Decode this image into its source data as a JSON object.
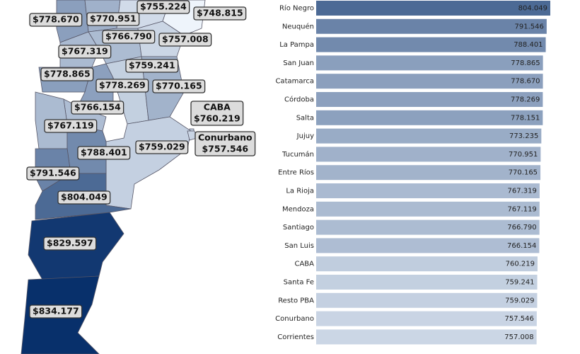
{
  "chart_data": [
    {
      "type": "map",
      "colors": [
        "#eef4fb",
        "#08306b"
      ],
      "regions": [
        {
          "label": "$778.670",
          "value": 778670
        },
        {
          "label": "$770.951",
          "value": 770951
        },
        {
          "label": "$755.224",
          "value": 755224
        },
        {
          "label": "$748.815",
          "value": 748815
        },
        {
          "label": "$766.790",
          "value": 766790
        },
        {
          "label": "$757.008",
          "value": 757008
        },
        {
          "label": "$767.319",
          "value": 767319
        },
        {
          "label": "$759.241",
          "value": 759241
        },
        {
          "label": "$778.865",
          "value": 778865
        },
        {
          "label": "$778.269",
          "value": 778269
        },
        {
          "label": "$770.165",
          "value": 770165
        },
        {
          "label": "$766.154",
          "value": 766154
        },
        {
          "name": "CABA",
          "label": "$760.219",
          "value": 760219
        },
        {
          "label": "$767.119",
          "value": 767119
        },
        {
          "label": "$759.029",
          "value": 759029
        },
        {
          "name": "Conurbano",
          "label": "$757.546",
          "value": 757546
        },
        {
          "label": "$788.401",
          "value": 788401
        },
        {
          "label": "$791.546",
          "value": 791546
        },
        {
          "label": "$804.049",
          "value": 804049
        },
        {
          "label": "$829.597",
          "value": 829597
        },
        {
          "label": "$834.177",
          "value": 834177
        }
      ]
    },
    {
      "type": "bar",
      "orientation": "horizontal",
      "colors": [
        "#eef4fb",
        "#08306b"
      ],
      "categories": [
        "Río Negro",
        "Neuquén",
        "La Pampa",
        "San Juan",
        "Catamarca",
        "Córdoba",
        "Salta",
        "Jujuy",
        "Tucumán",
        "Entre Ríos",
        "La Rioja",
        "Mendoza",
        "Santiago",
        "San Luis",
        "CABA",
        "Santa Fe",
        "Resto PBA",
        "Conurbano",
        "Corrientes"
      ],
      "values": [
        804049,
        791546,
        788401,
        778865,
        778670,
        778269,
        778151,
        773235,
        770951,
        770165,
        767319,
        767119,
        766790,
        766154,
        760219,
        759241,
        759029,
        757546,
        757008
      ],
      "value_labels": [
        "804.049",
        "791.546",
        "788.401",
        "778.865",
        "778.670",
        "778.269",
        "778.151",
        "773.235",
        "770.951",
        "770.165",
        "767.319",
        "767.119",
        "766.790",
        "766.154",
        "760.219",
        "759.241",
        "759.029",
        "757.546",
        "757.008"
      ]
    }
  ]
}
